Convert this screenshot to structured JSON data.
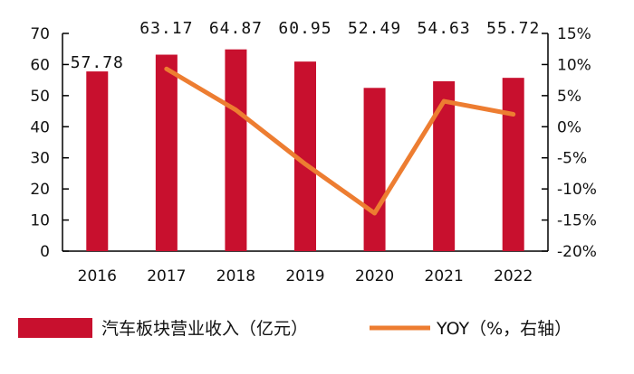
{
  "chart_data": {
    "type": "bar+line",
    "categories": [
      "2016",
      "2017",
      "2018",
      "2019",
      "2020",
      "2021",
      "2022"
    ],
    "series": [
      {
        "name": "汽车板块营业收入（亿元）",
        "type": "bar",
        "axis": "left",
        "values": [
          57.78,
          63.17,
          64.87,
          60.95,
          52.49,
          54.63,
          55.72
        ],
        "data_labels": [
          "57.78",
          "63.17",
          "64.87",
          "60.95",
          "52.49",
          "54.63",
          "55.72"
        ],
        "color": "#c8102e"
      },
      {
        "name": "YOY（%，右轴）",
        "type": "line",
        "axis": "right",
        "values": [
          null,
          9.3,
          2.7,
          -6.0,
          -13.9,
          4.1,
          2.0
        ],
        "color": "#ed7d31"
      }
    ],
    "left_axis": {
      "ylim": [
        0,
        70
      ],
      "ticks": [
        "0",
        "10",
        "20",
        "30",
        "40",
        "50",
        "60",
        "70"
      ]
    },
    "right_axis": {
      "ylim": [
        -20,
        15
      ],
      "ticks": [
        "-20%",
        "-15%",
        "-10%",
        "-5%",
        "0%",
        "5%",
        "10%",
        "15%"
      ]
    },
    "grid": false,
    "legend": "bottom"
  }
}
